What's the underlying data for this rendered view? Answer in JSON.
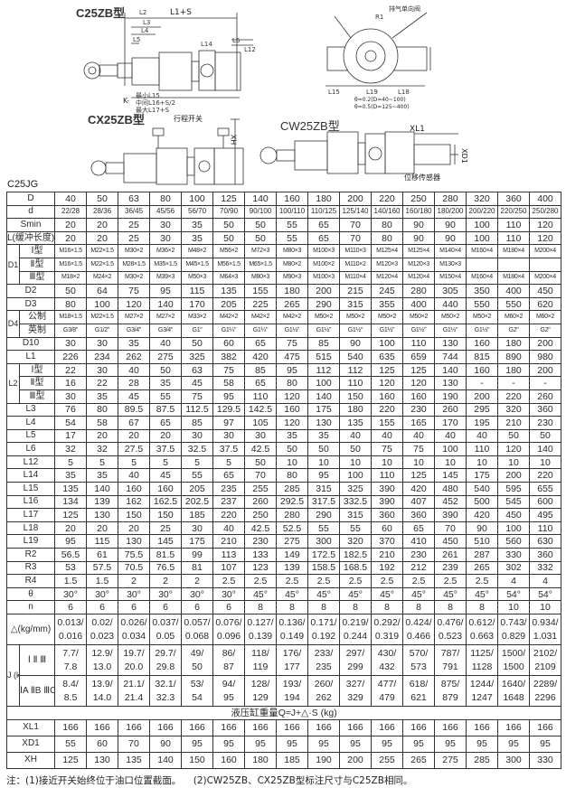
{
  "drawings": {
    "c25zb": {
      "title": "C25ZB型",
      "labels": {
        "l2": "L2",
        "l1s": "L1+S",
        "l3": "L3",
        "l4": "L4",
        "l5": "L5",
        "l14": "L14",
        "l6": "L6",
        "l12": "L12",
        "k": "K-",
        "min": "最小L15",
        "mid": "中间L16+S/2",
        "max": "最大L17+S"
      }
    },
    "end_view": {
      "labels": {
        "exhaust": "排气单向阀",
        "r1": "R1",
        "l15": "L15",
        "l19": "L19",
        "l18": "L18",
        "tol1": "θ≈0.2(D=40~100)",
        "tol2": "θ≈0.5(D=125~400)"
      }
    },
    "cx25zb": {
      "title": "CX25ZB型",
      "switch": "行程开关",
      "xh": "XH"
    },
    "cw25zb": {
      "title": "CW25ZB型",
      "xl1": "XL1",
      "xd1": "XD1",
      "sensor": "位移传感器"
    }
  },
  "table": {
    "caption": "C25JG",
    "rows": [
      {
        "label": "D",
        "values": [
          "40",
          "50",
          "63",
          "80",
          "100",
          "125",
          "140",
          "160",
          "180",
          "200",
          "220",
          "250",
          "280",
          "320",
          "360",
          "400"
        ]
      },
      {
        "label": "d",
        "cls": "tiny",
        "values": [
          "22/28",
          "28/36",
          "36/45",
          "45/56",
          "56/70",
          "70/90",
          "90/100",
          "100/110",
          "110/125",
          "125/140",
          "140/160",
          "160/180",
          "180/200",
          "200/220",
          "220/250",
          "250/280"
        ]
      },
      {
        "label": "Smin",
        "values": [
          "20",
          "20",
          "25",
          "30",
          "35",
          "50",
          "50",
          "55",
          "65",
          "70",
          "80",
          "90",
          "90",
          "100",
          "110",
          "120"
        ]
      },
      {
        "label": "L(缓冲长度)",
        "values": [
          "20",
          "20",
          "25",
          "30",
          "35",
          "50",
          "50",
          "55",
          "65",
          "70",
          "80",
          "90",
          "90",
          "100",
          "110",
          "120"
        ]
      },
      {
        "group": "D1",
        "rows": [
          {
            "label": "Ⅰ型",
            "cls": "thread",
            "values": [
              "M16×1.5",
              "M22×1.5",
              "M30×2",
              "M36×2",
              "M48×2",
              "M56×2",
              "M72×3",
              "M80×3",
              "M100×3",
              "M110×3",
              "M125×4",
              "M125×4",
              "M140×4",
              "M160×4",
              "M180×4",
              "M200×4"
            ]
          },
          {
            "label": "Ⅱ型",
            "cls": "thread",
            "values": [
              "M16×1.5",
              "M22×1.5",
              "M28×1.5",
              "M35×1.5",
              "M45×1.5",
              "M56×1.5",
              "M65×1.5",
              "M80×2",
              "M100×2",
              "M110×2",
              "M120×3",
              "M120×3",
              "M130×3",
              "",
              "",
              ""
            ]
          },
          {
            "label": "Ⅲ型",
            "cls": "thread",
            "values": [
              "M18×2",
              "M24×2",
              "M30×2",
              "M39×3",
              "M50×3",
              "M64×3",
              "M80×3",
              "M90×3",
              "M100×3",
              "M110×4",
              "M120×4",
              "M120×4",
              "M150×4",
              "M160×4",
              "M180×4",
              "M200×4"
            ]
          }
        ]
      },
      {
        "label": "D2",
        "values": [
          "50",
          "64",
          "75",
          "95",
          "115",
          "135",
          "155",
          "180",
          "200",
          "215",
          "245",
          "280",
          "305",
          "350",
          "400",
          "450"
        ]
      },
      {
        "label": "D3",
        "values": [
          "80",
          "100",
          "120",
          "140",
          "170",
          "205",
          "225",
          "265",
          "290",
          "315",
          "355",
          "400",
          "440",
          "550",
          "550",
          "620"
        ]
      },
      {
        "group": "D4",
        "rows": [
          {
            "label": "公制",
            "cls": "thread",
            "values": [
              "M18×1.5",
              "M22×1.5",
              "M27×2",
              "M27×2",
              "M33×2",
              "M42×2",
              "M42×2",
              "M42×2",
              "M50×2",
              "M50×2",
              "M50×2",
              "M50×2",
              "M50×2",
              "M50×2",
              "M60×2",
              "M60×2"
            ]
          },
          {
            "label": "英制",
            "cls": "thread",
            "values": [
              "G3/8\"",
              "G1/2\"",
              "G3/4\"",
              "G3/4\"",
              "G1\"",
              "G1¼\"",
              "G1¼\"",
              "G1½\"",
              "G1½\"",
              "G1½\"",
              "G1½\"",
              "G1½\"",
              "G1½\"",
              "G1½\"",
              "G2\"",
              "G2\""
            ]
          }
        ]
      },
      {
        "label": "D10",
        "values": [
          "30",
          "30",
          "35",
          "40",
          "50",
          "60",
          "65",
          "75",
          "85",
          "90",
          "100",
          "110",
          "130",
          "160",
          "180",
          "200"
        ]
      },
      {
        "label": "L1",
        "values": [
          "226",
          "234",
          "262",
          "275",
          "325",
          "382",
          "420",
          "475",
          "515",
          "540",
          "635",
          "659",
          "744",
          "815",
          "890",
          "980"
        ]
      },
      {
        "group": "L2",
        "rows": [
          {
            "label": "Ⅰ型",
            "values": [
              "22",
              "30",
              "40",
              "50",
              "63",
              "75",
              "85",
              "95",
              "112",
              "112",
              "125",
              "125",
              "140",
              "160",
              "180",
              "200"
            ]
          },
          {
            "label": "Ⅱ型",
            "values": [
              "16",
              "22",
              "28",
              "35",
              "45",
              "58",
              "65",
              "80",
              "100",
              "110",
              "120",
              "120",
              "130",
              "-",
              "-",
              "-"
            ]
          },
          {
            "label": "Ⅲ型",
            "values": [
              "30",
              "35",
              "45",
              "55",
              "75",
              "95",
              "110",
              "120",
              "140",
              "150",
              "160",
              "160",
              "190",
              "200",
              "220",
              "260"
            ]
          }
        ]
      },
      {
        "label": "L3",
        "values": [
          "76",
          "80",
          "89.5",
          "87.5",
          "112.5",
          "129.5",
          "142.5",
          "160",
          "175",
          "180",
          "220",
          "230",
          "260",
          "295",
          "320",
          "360"
        ]
      },
      {
        "label": "L4",
        "values": [
          "54",
          "58",
          "67",
          "65",
          "85",
          "97",
          "105",
          "120",
          "130",
          "135",
          "155",
          "165",
          "170",
          "195",
          "210",
          "230"
        ]
      },
      {
        "label": "L5",
        "values": [
          "17",
          "20",
          "20",
          "20",
          "30",
          "30",
          "30",
          "35",
          "35",
          "40",
          "40",
          "40",
          "40",
          "40",
          "50",
          "50"
        ]
      },
      {
        "label": "L6",
        "values": [
          "32",
          "32",
          "27.5",
          "37.5",
          "32.5",
          "37.5",
          "42.5",
          "50",
          "50",
          "50",
          "75",
          "75",
          "100",
          "110",
          "120",
          "140"
        ]
      },
      {
        "label": "L12",
        "values": [
          "5",
          "5",
          "5",
          "5",
          "5",
          "5",
          "50",
          "10",
          "10",
          "10",
          "10",
          "10",
          "10",
          "10",
          "10",
          "10"
        ]
      },
      {
        "label": "L14",
        "values": [
          "35",
          "35",
          "40",
          "45",
          "55",
          "65",
          "70",
          "80",
          "95",
          "100",
          "110",
          "125",
          "145",
          "175",
          "200",
          "220"
        ]
      },
      {
        "label": "L15",
        "values": [
          "135",
          "140",
          "160",
          "160",
          "205",
          "235",
          "255",
          "285",
          "315",
          "325",
          "390",
          "420",
          "480",
          "540",
          "595",
          "655"
        ]
      },
      {
        "label": "L16",
        "values": [
          "134",
          "139",
          "162",
          "162.5",
          "202.5",
          "237",
          "260",
          "292.5",
          "317.5",
          "332.5",
          "390",
          "407",
          "452",
          "500",
          "545",
          "600"
        ]
      },
      {
        "label": "L17",
        "values": [
          "125",
          "130",
          "150",
          "150",
          "185",
          "220",
          "250",
          "280",
          "290",
          "315",
          "360",
          "360",
          "390",
          "420",
          "450",
          "495"
        ]
      },
      {
        "label": "L18",
        "values": [
          "20",
          "20",
          "20",
          "25",
          "30",
          "40",
          "42.5",
          "52.5",
          "55",
          "55",
          "60",
          "65",
          "70",
          "90",
          "100",
          "110"
        ]
      },
      {
        "label": "L19",
        "values": [
          "95",
          "115",
          "130",
          "145",
          "175",
          "210",
          "230",
          "275",
          "300",
          "320",
          "370",
          "410",
          "450",
          "510",
          "560",
          "630"
        ]
      },
      {
        "label": "R2",
        "values": [
          "56.5",
          "61",
          "75.5",
          "81.5",
          "99",
          "113",
          "133",
          "149",
          "172.5",
          "182.5",
          "210",
          "230",
          "261",
          "287",
          "330",
          "360"
        ]
      },
      {
        "label": "R3",
        "values": [
          "53",
          "57.5",
          "70.5",
          "76.5",
          "81",
          "107",
          "123",
          "139",
          "158.5",
          "168.5",
          "192",
          "212",
          "239",
          "265",
          "302",
          "332"
        ]
      },
      {
        "label": "R4",
        "values": [
          "1.5",
          "1.5",
          "2",
          "2",
          "2",
          "2.5",
          "2.5",
          "2.5",
          "2.5",
          "2.5",
          "2.5",
          "2.5",
          "2.5",
          "2.5",
          "4",
          "4"
        ]
      },
      {
        "label": "θ",
        "values": [
          "30°",
          "30°",
          "30°",
          "30°",
          "30°",
          "30°",
          "45°",
          "45°",
          "45°",
          "45°",
          "45°",
          "45°",
          "45°",
          "45°",
          "54°",
          "54°"
        ]
      },
      {
        "label": "n",
        "values": [
          "6",
          "6",
          "6",
          "6",
          "6",
          "6",
          "8",
          "8",
          "8",
          "8",
          "8",
          "8",
          "8",
          "8",
          "10",
          "10"
        ]
      },
      {
        "label": "△(kg/mm)",
        "two_line": true,
        "values": [
          "0.013/0.016",
          "0.02/0.023",
          "0.026/0.034",
          "0.037/0.05",
          "0.057/0.068",
          "0.076/0.096",
          "0.127/0.139",
          "0.136/0.149",
          "0.171/0.192",
          "0.219/0.244",
          "0.292/0.319",
          "0.424/0.466",
          "0.476/0.523",
          "0.612/0.663",
          "0.743/0.829",
          "0.934/1.031"
        ]
      },
      {
        "group": "J (kg)",
        "rows": [
          {
            "label": "Ⅰ Ⅱ Ⅲ",
            "two_line": true,
            "values": [
              "7.7/7.8",
              "12.9/13.0",
              "19.7/20.0",
              "29.7/29.8",
              "49/50",
              "86/87",
              "118/119",
              "176/177",
              "233/235",
              "297/299",
              "430/432",
              "570/573",
              "787/791",
              "1125/1128",
              "1500/1500",
              "2102/2109"
            ]
          },
          {
            "label": "ⅠA ⅡB ⅢC",
            "two_line": true,
            "values": [
              "8.4/8.5",
              "13.9/14.0",
              "21.1/21.4",
              "32.1/32.3",
              "53/54",
              "94/95",
              "128/129",
              "193/194",
              "260/262",
              "327/329",
              "477/479",
              "618/621",
              "875/879",
              "1244/1247",
              "1640/1648",
              "2289/2296"
            ]
          }
        ]
      },
      {
        "span_text": "液压缸重量Q≈J+△·S (kg)"
      },
      {
        "label": "XL1",
        "tall": true,
        "values": [
          "166",
          "166",
          "166",
          "166",
          "166",
          "166",
          "166",
          "166",
          "166",
          "166",
          "166",
          "166",
          "166",
          "166",
          "166",
          "166"
        ]
      },
      {
        "label": "XD1",
        "tall": true,
        "values": [
          "55",
          "60",
          "70",
          "90",
          "95",
          "95",
          "95",
          "95",
          "95",
          "95",
          "95",
          "95",
          "95",
          "95",
          "95",
          "95"
        ]
      },
      {
        "label": "XH",
        "tall": true,
        "values": [
          "125",
          "130",
          "135",
          "140",
          "150",
          "160",
          "180",
          "185",
          "190",
          "200",
          "255",
          "265",
          "275",
          "285",
          "300",
          "330"
        ]
      }
    ]
  },
  "note": "注：(1)接近开关始终位于油口位置截面。    (2)CW25ZB、CX25ZB型标注尺寸与C25ZB相同。"
}
